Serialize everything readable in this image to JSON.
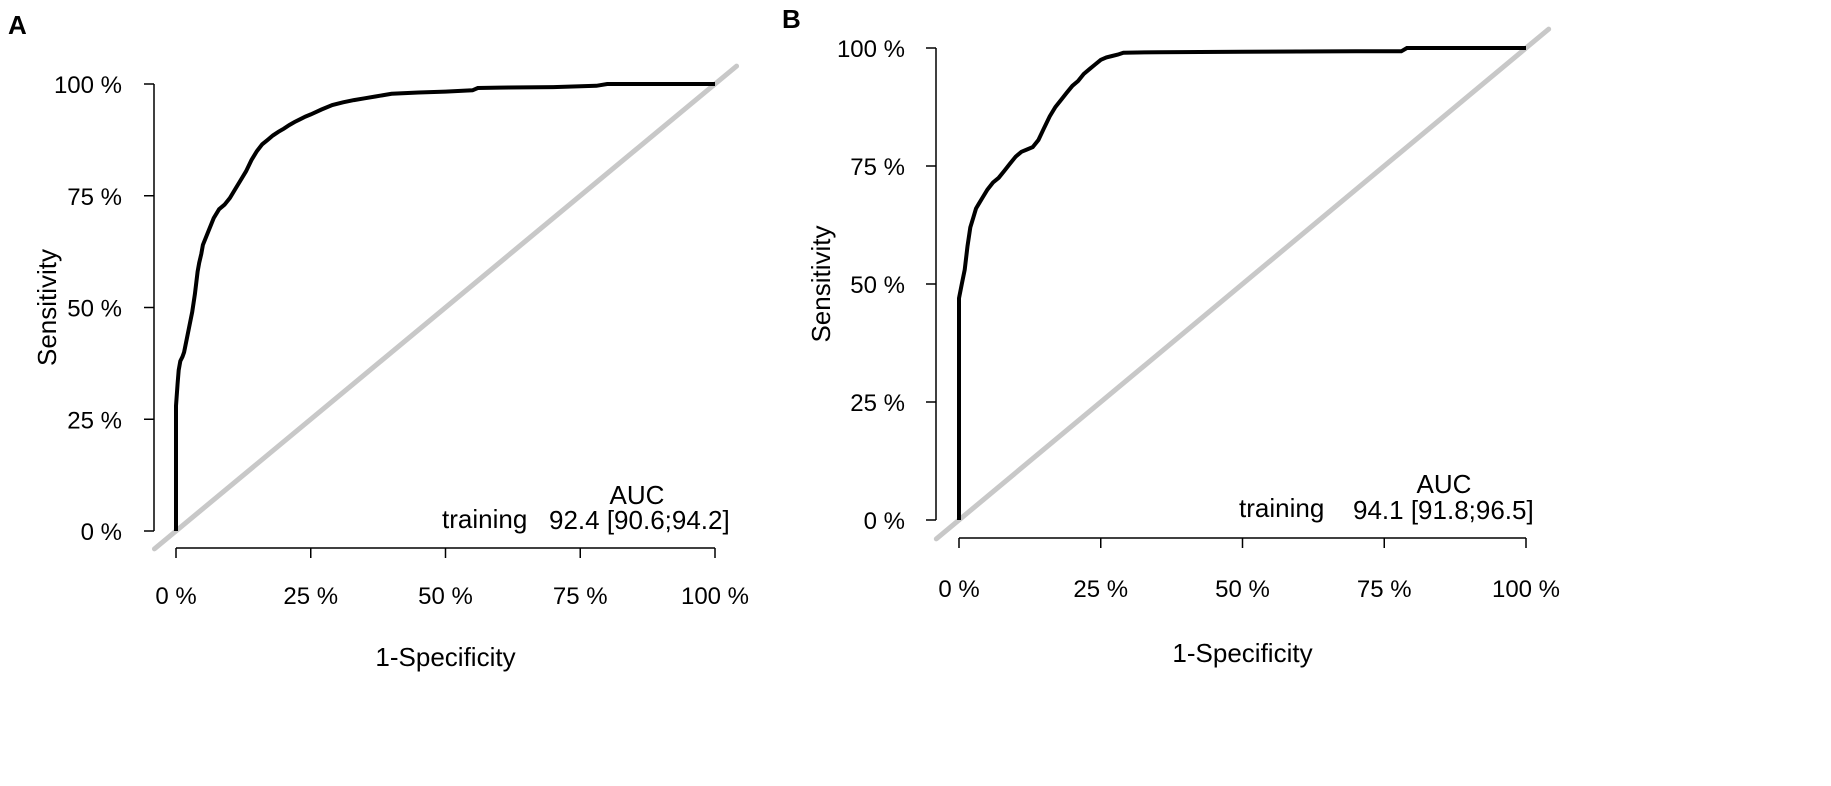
{
  "chart_data": [
    {
      "panel": "A",
      "type": "line",
      "xlabel": "1-Specificity",
      "ylabel": "Sensitivity",
      "xlim": [
        0,
        100
      ],
      "ylim": [
        0,
        100
      ],
      "x_ticks": [
        "0 %",
        "25 %",
        "50 %",
        "75 %",
        "100 %"
      ],
      "y_ticks": [
        "0 %",
        "25 %",
        "50 %",
        "75 %",
        "100 %"
      ],
      "tick_values": [
        0,
        25,
        50,
        75,
        100
      ],
      "legend": {
        "header": "AUC",
        "name": "training",
        "value": "92.4 [90.6;94.2]"
      },
      "series": [
        {
          "name": "training",
          "color": "#000000",
          "x": [
            0,
            0,
            0.3,
            0.5,
            0.8,
            1.2,
            1.5,
            2,
            2.5,
            3,
            3.5,
            4,
            4.3,
            4.7,
            5,
            6,
            7,
            8,
            9,
            10,
            11,
            12,
            13,
            14,
            15,
            16,
            17,
            18,
            19,
            20,
            21,
            22,
            23,
            24,
            25,
            27,
            29,
            31,
            33,
            35,
            37,
            40,
            45,
            50,
            55,
            56,
            60,
            70,
            78,
            80,
            90,
            100
          ],
          "y": [
            0,
            28,
            33,
            36,
            38,
            39,
            40,
            43,
            46,
            49,
            53,
            58,
            60,
            62,
            64,
            67,
            70,
            72,
            73,
            74.5,
            76.5,
            78.5,
            80.5,
            83,
            85,
            86.5,
            87.5,
            88.5,
            89.3,
            90,
            90.8,
            91.5,
            92.1,
            92.7,
            93.2,
            94.3,
            95.3,
            95.9,
            96.4,
            96.8,
            97.2,
            97.8,
            98.1,
            98.3,
            98.6,
            99.1,
            99.2,
            99.3,
            99.6,
            100,
            100,
            100
          ]
        },
        {
          "name": "reference",
          "color": "#c8c8c8",
          "x": [
            -4,
            104
          ],
          "y": [
            -4,
            104
          ]
        }
      ]
    },
    {
      "panel": "B",
      "type": "line",
      "xlabel": "1-Specificity",
      "ylabel": "Sensitivity",
      "xlim": [
        0,
        100
      ],
      "ylim": [
        0,
        100
      ],
      "x_ticks": [
        "0 %",
        "25 %",
        "50 %",
        "75 %",
        "100 %"
      ],
      "y_ticks": [
        "0 %",
        "25 %",
        "50 %",
        "75 %",
        "100 %"
      ],
      "tick_values": [
        0,
        25,
        50,
        75,
        100
      ],
      "legend": {
        "header": "AUC",
        "name": "training",
        "value": "94.1 [91.8;96.5]"
      },
      "series": [
        {
          "name": "training",
          "color": "#000000",
          "x": [
            0,
            0,
            0.5,
            1,
            1.5,
            2,
            2.5,
            3,
            3.5,
            4,
            5,
            6,
            7,
            8,
            9,
            10,
            11,
            12,
            13,
            14,
            15,
            16,
            17,
            18,
            19,
            20,
            21,
            22,
            23,
            24,
            25,
            26,
            27,
            28,
            29,
            35,
            50,
            70,
            78,
            79,
            90,
            100
          ],
          "y": [
            0,
            47,
            50,
            53,
            58,
            62,
            64,
            66,
            67,
            68,
            70,
            71.5,
            72.5,
            74,
            75.5,
            77,
            78,
            78.5,
            79,
            80.5,
            83,
            85.5,
            87.5,
            89,
            90.5,
            92,
            93,
            94.5,
            95.5,
            96.5,
            97.5,
            98,
            98.3,
            98.6,
            99,
            99.1,
            99.2,
            99.3,
            99.3,
            100,
            100,
            100
          ]
        },
        {
          "name": "reference",
          "color": "#c8c8c8",
          "x": [
            -4,
            104
          ],
          "y": [
            -4,
            104
          ]
        }
      ]
    }
  ]
}
